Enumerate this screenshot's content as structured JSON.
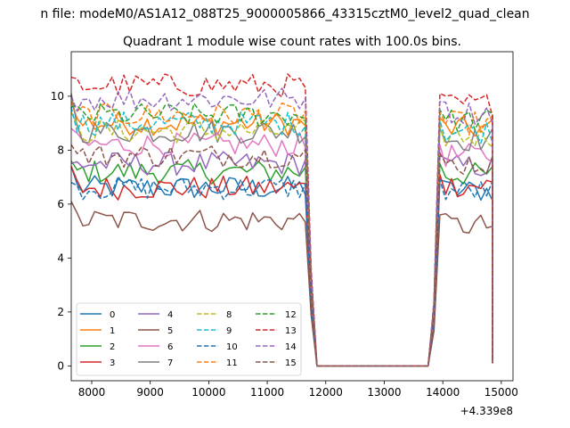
{
  "figure": {
    "suptitle": "n file: modeM0/AS1A12_088T25_9000005866_43315cztM0_level2_quad_clean",
    "title": "Quadrant 1 module wise count rates with 100.0s bins.",
    "x_offset_label": "+4.339e8"
  },
  "chart_data": {
    "type": "line",
    "title": "Quadrant 1 module wise count rates with 100.0s bins.",
    "xlabel": "",
    "ylabel": "",
    "x_offset": 433900000,
    "xlim": [
      7650,
      15200
    ],
    "ylim": [
      -0.55,
      11.65
    ],
    "xticks": [
      8000,
      9000,
      10000,
      11000,
      12000,
      13000,
      14000,
      15000
    ],
    "xtick_labels": [
      "8000",
      "9000",
      "10000",
      "11000",
      "12000",
      "13000",
      "14000",
      "15000"
    ],
    "yticks": [
      0,
      2,
      4,
      6,
      8,
      10
    ],
    "ytick_labels": [
      "0",
      "2",
      "4",
      "6",
      "8",
      "10"
    ],
    "grid": false,
    "legend": {
      "placement": "lower-left",
      "columns": 4
    },
    "segments": [
      {
        "x_start": 7650,
        "x_end": 11650,
        "n": 41
      },
      {
        "x_start": 11650,
        "x_end": 11850,
        "n": 3
      },
      {
        "x_start": 11850,
        "x_end": 13750,
        "n": 20
      },
      {
        "x_start": 13750,
        "x_end": 13950,
        "n": 3
      },
      {
        "x_start": 13950,
        "x_end": 14850,
        "n": 10
      }
    ],
    "series": [
      {
        "name": "0",
        "color": "#1f77b4",
        "dash": "solid",
        "level1": 6.6,
        "level2": 6.5,
        "first": 7.4
      },
      {
        "name": "1",
        "color": "#ff7f0e",
        "dash": "solid",
        "level1": 9.0,
        "level2": 8.8,
        "first": 9.8
      },
      {
        "name": "2",
        "color": "#2ca02c",
        "dash": "solid",
        "level1": 7.2,
        "level2": 7.1,
        "first": 7.6
      },
      {
        "name": "3",
        "color": "#d62728",
        "dash": "solid",
        "level1": 6.6,
        "level2": 6.7,
        "first": 7.4
      },
      {
        "name": "4",
        "color": "#9467bd",
        "dash": "solid",
        "level1": 7.5,
        "level2": 7.4,
        "first": 7.5
      },
      {
        "name": "5",
        "color": "#8c564b",
        "dash": "solid",
        "level1": 5.4,
        "level2": 5.2,
        "first": 6.1
      },
      {
        "name": "6",
        "color": "#e377c2",
        "dash": "solid",
        "level1": 8.2,
        "level2": 7.8,
        "first": 8.8
      },
      {
        "name": "7",
        "color": "#7f7f7f",
        "dash": "solid",
        "level1": 8.7,
        "level2": 8.4,
        "first": 10.1
      },
      {
        "name": "8",
        "color": "#bcbd22",
        "dash": "dashed",
        "level1": 8.7,
        "level2": 8.5,
        "first": 9.4
      },
      {
        "name": "9",
        "color": "#17becf",
        "dash": "dashed",
        "level1": 9.0,
        "level2": 8.7,
        "first": 9.6
      },
      {
        "name": "10",
        "color": "#1f77b4",
        "dash": "dashed",
        "level1": 6.6,
        "level2": 6.5,
        "first": 6.8
      },
      {
        "name": "11",
        "color": "#ff7f0e",
        "dash": "dashed",
        "level1": 9.3,
        "level2": 9.0,
        "first": 10.0
      },
      {
        "name": "12",
        "color": "#2ca02c",
        "dash": "dashed",
        "level1": 9.3,
        "level2": 9.1,
        "first": 9.6
      },
      {
        "name": "13",
        "color": "#d62728",
        "dash": "dashed",
        "level1": 10.4,
        "level2": 9.7,
        "first": 10.7
      },
      {
        "name": "14",
        "color": "#9467bd",
        "dash": "dashed",
        "level1": 9.9,
        "level2": 9.4,
        "first": 10.0
      },
      {
        "name": "15",
        "color": "#8c564b",
        "dash": "dashed",
        "level1": 7.8,
        "level2": 7.5,
        "first": 8.2
      }
    ]
  }
}
